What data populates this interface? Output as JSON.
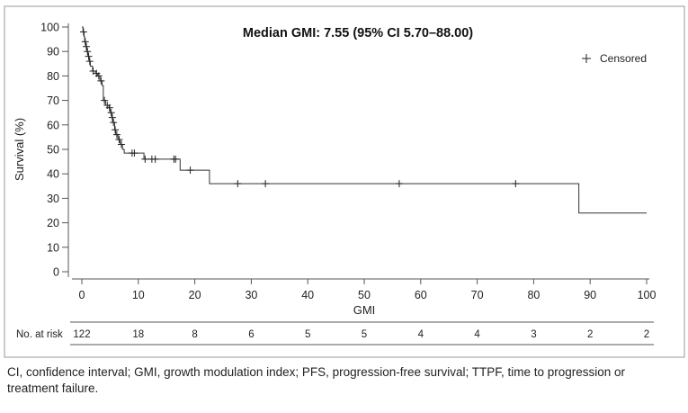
{
  "chart_data": {
    "type": "line",
    "subtype": "kaplan-meier",
    "title": "Median GMI: 7.55 (95% CI 5.70–88.00)",
    "xlabel": "GMI",
    "ylabel": "Survival (%)",
    "xlim": [
      0,
      100
    ],
    "ylim": [
      0,
      100
    ],
    "xticks": [
      0,
      10,
      20,
      30,
      40,
      50,
      60,
      70,
      80,
      90,
      100
    ],
    "yticks": [
      0,
      10,
      20,
      30,
      40,
      50,
      60,
      70,
      80,
      90,
      100
    ],
    "grid": false,
    "legend": {
      "placement": "top-right",
      "entries": [
        "Censored"
      ]
    },
    "steps": [
      [
        0,
        100
      ],
      [
        0.2,
        98
      ],
      [
        0.4,
        96
      ],
      [
        0.5,
        94
      ],
      [
        0.7,
        92
      ],
      [
        0.9,
        90
      ],
      [
        1.1,
        88
      ],
      [
        1.3,
        86
      ],
      [
        1.5,
        84
      ],
      [
        1.9,
        82
      ],
      [
        2.4,
        81
      ],
      [
        2.8,
        80
      ],
      [
        3.2,
        78
      ],
      [
        3.6,
        76
      ],
      [
        3.8,
        70
      ],
      [
        4.2,
        68
      ],
      [
        4.8,
        67
      ],
      [
        5.0,
        65
      ],
      [
        5.3,
        63
      ],
      [
        5.5,
        61
      ],
      [
        5.8,
        58
      ],
      [
        6.0,
        56
      ],
      [
        6.4,
        54
      ],
      [
        6.8,
        52
      ],
      [
        7.2,
        50
      ],
      [
        7.5,
        48.5
      ],
      [
        11,
        46
      ],
      [
        17.4,
        41.5
      ],
      [
        22.6,
        36
      ],
      [
        88,
        24
      ]
    ],
    "x_end": 100,
    "censored": [
      0.3,
      0.6,
      0.8,
      1.0,
      1.2,
      1.4,
      2.0,
      2.6,
      3.0,
      3.4,
      4.0,
      4.5,
      4.9,
      5.2,
      5.4,
      5.6,
      5.9,
      6.2,
      6.6,
      7.0,
      8.9,
      9.3,
      11.2,
      12.4,
      13.0,
      16.3,
      16.6,
      19.2,
      27.6,
      32.5,
      56.2,
      76.8
    ],
    "risk_table": {
      "label": "No. at risk",
      "times": [
        0,
        10,
        20,
        30,
        40,
        50,
        60,
        70,
        80,
        90,
        100
      ],
      "values": [
        "122",
        "18",
        "8",
        "6",
        "5",
        "5",
        "4",
        "4",
        "3",
        "2",
        "2"
      ]
    }
  },
  "caption": {
    "line1": "CI, confidence interval; GMI, growth modulation index; PFS, progression-free survival; TTPF, time to progression or",
    "line2": "treatment failure."
  }
}
